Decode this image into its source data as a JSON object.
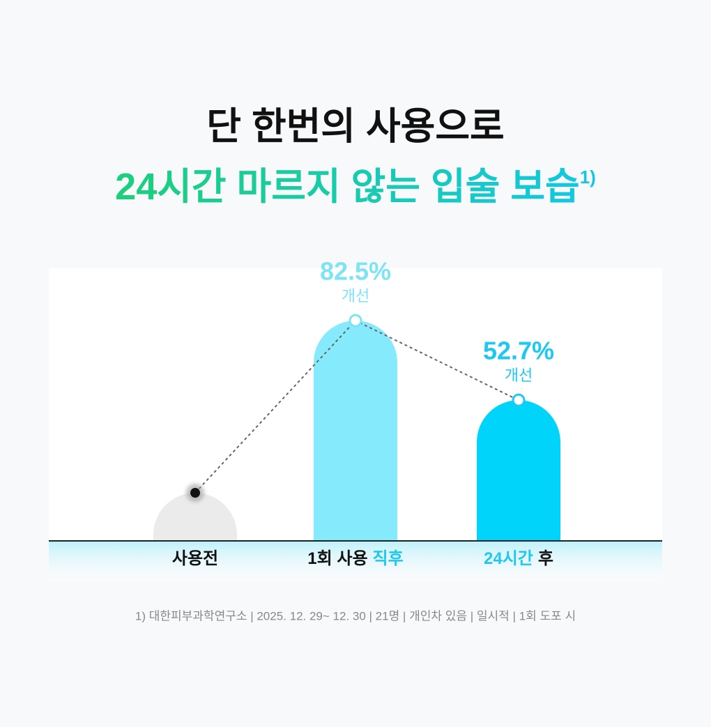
{
  "chart_data": {
    "type": "bar",
    "title": "단 한번의 사용으로",
    "subtitle": "24시간 마르지 않는 입술 보습",
    "subtitle_note": "1)",
    "categories": [
      [
        "사용전"
      ],
      [
        "1회 사용",
        "직후"
      ],
      [
        "24시간",
        "후"
      ]
    ],
    "category_highlight": [
      null,
      1,
      0
    ],
    "highlight_color": "#1ec8ef",
    "values": [
      18,
      82.5,
      52.7
    ],
    "value_labels": [
      null,
      "82.5%",
      "52.7%"
    ],
    "value_notes": [
      null,
      "개선",
      "개선"
    ],
    "colors": [
      "#ebebeb",
      "#85eafc",
      "#00d4fb"
    ],
    "label_colors": [
      null,
      "#7ee3f5",
      "#1ec8ef"
    ],
    "ylim": [
      0,
      100
    ],
    "footnote": "1) 대한피부과학연구소 | 2025. 12. 29~ 12. 30 | 21명 | 개인차 있음 | 일시적 | 1회 도포 시"
  }
}
